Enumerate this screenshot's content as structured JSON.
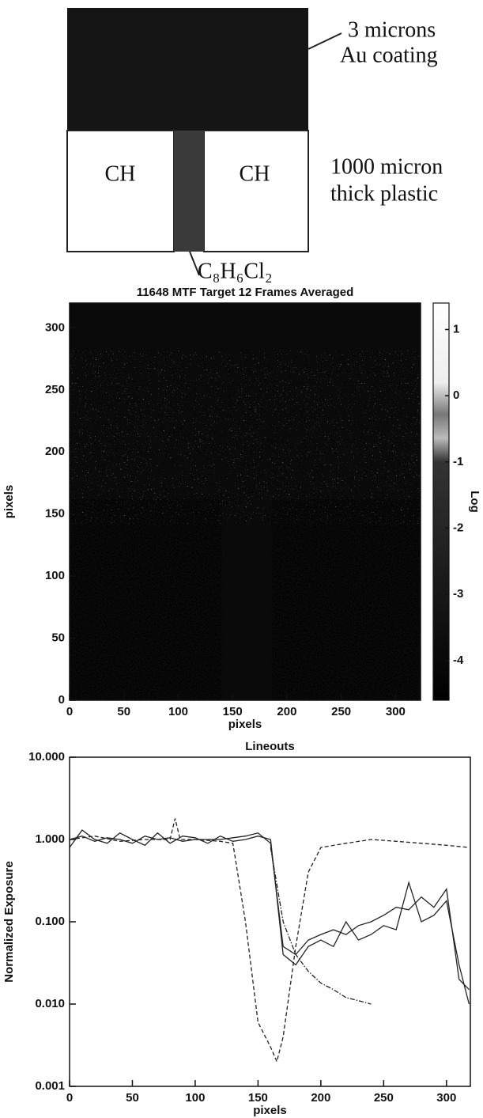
{
  "diagram": {
    "coating_label": [
      "3 microns",
      "Au coating"
    ],
    "left_label": "CH",
    "right_label": "CH",
    "plastic_label": [
      "1000 micron",
      "thick plastic"
    ],
    "channel_label": "C₈H₆Cl₂"
  },
  "chart_data": [
    {
      "type": "heatmap",
      "title": "11648 MTF Target 12 Frames Averaged",
      "x_label": "pixels",
      "y_label": "pixels",
      "xlim": [
        0,
        323
      ],
      "ylim": [
        0,
        320
      ],
      "xticks": [
        0,
        50,
        100,
        150,
        200,
        250,
        300
      ],
      "yticks": [
        0,
        50,
        100,
        150,
        200,
        250,
        300
      ],
      "colorbar": {
        "label": "Log",
        "lim": [
          -4.6,
          1.4
        ],
        "ticks": [
          -4,
          -3,
          -2,
          -1,
          0,
          1
        ]
      }
    },
    {
      "type": "line",
      "title": "Lineouts",
      "x_label": "pixels",
      "y_label": "Normalized Exposure",
      "log_y": true,
      "xlim": [
        0,
        319
      ],
      "ylim": [
        0.001,
        10
      ],
      "xticks": [
        0,
        50,
        100,
        150,
        200,
        250,
        300
      ],
      "yticks": [
        {
          "value": 0.001,
          "label": "0.001"
        },
        {
          "value": 0.01,
          "label": "0.010"
        },
        {
          "value": 0.1,
          "label": "0.100"
        },
        {
          "value": 1,
          "label": "1.000"
        },
        {
          "value": 10,
          "label": "10.000"
        }
      ],
      "series": [
        {
          "color": "#222222",
          "dash": "solid",
          "x": [
            0,
            10,
            20,
            30,
            40,
            50,
            60,
            70,
            80,
            90,
            100,
            110,
            120,
            130,
            140,
            150,
            160,
            170,
            180,
            190,
            200,
            210,
            220,
            230,
            240,
            250,
            260,
            270,
            280,
            290,
            300,
            310,
            318
          ],
          "values": [
            1.0,
            1.1,
            0.95,
            1.05,
            1.0,
            0.9,
            1.1,
            1.0,
            1.05,
            0.95,
            1.0,
            1.0,
            1.0,
            1.05,
            1.1,
            1.2,
            0.9,
            0.05,
            0.04,
            0.06,
            0.07,
            0.08,
            0.07,
            0.09,
            0.1,
            0.12,
            0.15,
            0.14,
            0.2,
            0.15,
            0.25,
            0.02,
            0.015
          ]
        },
        {
          "color": "#222222",
          "dash": "solid",
          "x": [
            0,
            10,
            20,
            30,
            40,
            50,
            60,
            70,
            80,
            90,
            100,
            110,
            120,
            130,
            140,
            150,
            160,
            170,
            180,
            190,
            200,
            210,
            220,
            230,
            240,
            250,
            260,
            270,
            280,
            290,
            300,
            310,
            318
          ],
          "values": [
            0.8,
            1.3,
            1.0,
            0.9,
            1.2,
            1.0,
            0.85,
            1.2,
            0.9,
            1.1,
            1.05,
            0.9,
            1.1,
            0.95,
            1.0,
            1.1,
            1.0,
            0.04,
            0.03,
            0.05,
            0.06,
            0.05,
            0.1,
            0.06,
            0.07,
            0.09,
            0.08,
            0.3,
            0.1,
            0.12,
            0.18,
            0.03,
            0.01
          ]
        },
        {
          "color": "#222222",
          "dash": "dashed",
          "x": [
            0,
            20,
            40,
            60,
            80,
            84,
            88,
            100,
            120,
            130,
            140,
            150,
            160,
            165,
            170,
            180,
            190,
            200,
            220,
            240,
            260,
            280,
            300,
            318
          ],
          "values": [
            1.0,
            1.1,
            0.95,
            1.0,
            1.0,
            1.8,
            1.0,
            1.0,
            0.95,
            0.9,
            0.1,
            0.006,
            0.003,
            0.002,
            0.004,
            0.05,
            0.4,
            0.8,
            0.9,
            1.0,
            0.95,
            0.9,
            0.85,
            0.8
          ]
        },
        {
          "color": "#222222",
          "dash": "dashdot",
          "x": [
            160,
            170,
            180,
            190,
            200,
            210,
            220,
            230,
            240
          ],
          "values": [
            0.8,
            0.1,
            0.04,
            0.025,
            0.018,
            0.015,
            0.012,
            0.011,
            0.01
          ]
        }
      ]
    }
  ]
}
